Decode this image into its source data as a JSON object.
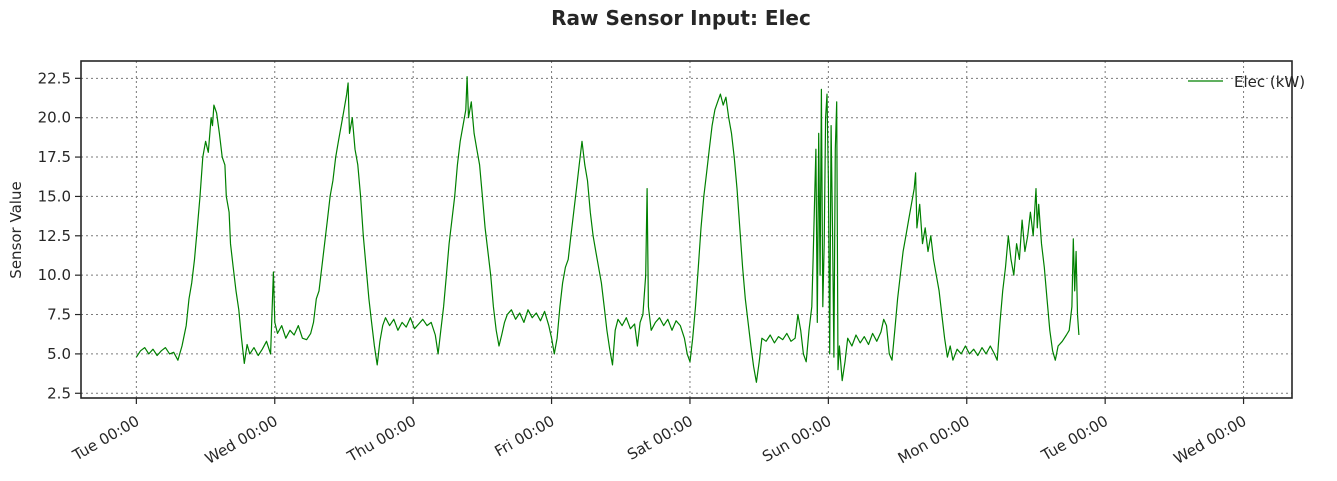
{
  "chart_data": {
    "type": "line",
    "title": "Raw Sensor Input: Elec",
    "ylabel": "Sensor Value",
    "xlabel": "",
    "ylim": [
      2.2,
      23.6
    ],
    "xlim": [
      -0.4,
      8.35
    ],
    "y_ticks": [
      2.5,
      5.0,
      7.5,
      10.0,
      12.5,
      15.0,
      17.5,
      20.0,
      22.5
    ],
    "y_tick_labels": [
      "2.5",
      "5.0",
      "7.5",
      "10.0",
      "12.5",
      "15.0",
      "17.5",
      "20.0",
      "22.5"
    ],
    "x_ticks": [
      0,
      1,
      2,
      3,
      4,
      5,
      6,
      7,
      8
    ],
    "x_tick_labels": [
      "Tue 00:00",
      "Wed 00:00",
      "Thu 00:00",
      "Fri 00:00",
      "Sat 00:00",
      "Sun 00:00",
      "Mon 00:00",
      "Tue 00:00",
      "Wed 00:00"
    ],
    "x_unit": "days",
    "grid": true,
    "legend_position": "top-right",
    "series": [
      {
        "name": "Elec (kW)",
        "color": "#008000",
        "points": [
          [
            0.0,
            4.8
          ],
          [
            0.03,
            5.2
          ],
          [
            0.06,
            5.4
          ],
          [
            0.09,
            5.0
          ],
          [
            0.12,
            5.3
          ],
          [
            0.15,
            4.9
          ],
          [
            0.18,
            5.2
          ],
          [
            0.21,
            5.4
          ],
          [
            0.24,
            5.0
          ],
          [
            0.27,
            5.1
          ],
          [
            0.3,
            4.6
          ],
          [
            0.33,
            5.5
          ],
          [
            0.36,
            6.8
          ],
          [
            0.38,
            8.5
          ],
          [
            0.4,
            9.5
          ],
          [
            0.42,
            11.0
          ],
          [
            0.44,
            13.0
          ],
          [
            0.46,
            15.0
          ],
          [
            0.48,
            17.5
          ],
          [
            0.5,
            18.5
          ],
          [
            0.52,
            17.8
          ],
          [
            0.54,
            20.0
          ],
          [
            0.55,
            19.5
          ],
          [
            0.56,
            20.8
          ],
          [
            0.58,
            20.3
          ],
          [
            0.6,
            19.0
          ],
          [
            0.62,
            17.5
          ],
          [
            0.64,
            17.0
          ],
          [
            0.65,
            15.0
          ],
          [
            0.67,
            14.0
          ],
          [
            0.68,
            12.0
          ],
          [
            0.7,
            10.5
          ],
          [
            0.72,
            9.0
          ],
          [
            0.74,
            7.8
          ],
          [
            0.76,
            6.0
          ],
          [
            0.78,
            4.4
          ],
          [
            0.8,
            5.6
          ],
          [
            0.82,
            5.0
          ],
          [
            0.85,
            5.4
          ],
          [
            0.88,
            4.9
          ],
          [
            0.91,
            5.3
          ],
          [
            0.94,
            5.8
          ],
          [
            0.97,
            5.0
          ],
          [
            0.99,
            10.2
          ],
          [
            1.0,
            7.0
          ],
          [
            1.02,
            6.3
          ],
          [
            1.05,
            6.8
          ],
          [
            1.08,
            6.0
          ],
          [
            1.11,
            6.5
          ],
          [
            1.14,
            6.2
          ],
          [
            1.17,
            6.8
          ],
          [
            1.2,
            6.0
          ],
          [
            1.23,
            5.9
          ],
          [
            1.26,
            6.3
          ],
          [
            1.28,
            7.0
          ],
          [
            1.3,
            8.5
          ],
          [
            1.32,
            9.0
          ],
          [
            1.34,
            10.5
          ],
          [
            1.36,
            12.0
          ],
          [
            1.38,
            13.5
          ],
          [
            1.4,
            15.0
          ],
          [
            1.42,
            16.0
          ],
          [
            1.44,
            17.5
          ],
          [
            1.46,
            18.5
          ],
          [
            1.48,
            19.5
          ],
          [
            1.5,
            20.5
          ],
          [
            1.52,
            21.5
          ],
          [
            1.53,
            22.2
          ],
          [
            1.54,
            19.0
          ],
          [
            1.56,
            20.0
          ],
          [
            1.58,
            18.0
          ],
          [
            1.6,
            17.0
          ],
          [
            1.62,
            15.0
          ],
          [
            1.64,
            12.5
          ],
          [
            1.66,
            10.5
          ],
          [
            1.68,
            8.5
          ],
          [
            1.7,
            7.0
          ],
          [
            1.72,
            5.5
          ],
          [
            1.74,
            4.3
          ],
          [
            1.76,
            5.8
          ],
          [
            1.78,
            6.8
          ],
          [
            1.8,
            7.3
          ],
          [
            1.83,
            6.8
          ],
          [
            1.86,
            7.2
          ],
          [
            1.89,
            6.5
          ],
          [
            1.92,
            7.0
          ],
          [
            1.95,
            6.7
          ],
          [
            1.98,
            7.3
          ],
          [
            2.01,
            6.6
          ],
          [
            2.04,
            6.9
          ],
          [
            2.07,
            7.2
          ],
          [
            2.1,
            6.8
          ],
          [
            2.13,
            7.0
          ],
          [
            2.16,
            6.2
          ],
          [
            2.18,
            5.0
          ],
          [
            2.2,
            6.5
          ],
          [
            2.22,
            8.0
          ],
          [
            2.24,
            10.0
          ],
          [
            2.26,
            12.0
          ],
          [
            2.28,
            13.5
          ],
          [
            2.3,
            15.0
          ],
          [
            2.32,
            17.0
          ],
          [
            2.34,
            18.5
          ],
          [
            2.36,
            19.5
          ],
          [
            2.38,
            20.5
          ],
          [
            2.39,
            22.6
          ],
          [
            2.4,
            20.0
          ],
          [
            2.42,
            21.0
          ],
          [
            2.44,
            19.0
          ],
          [
            2.46,
            18.0
          ],
          [
            2.48,
            17.0
          ],
          [
            2.5,
            15.0
          ],
          [
            2.52,
            13.0
          ],
          [
            2.54,
            11.5
          ],
          [
            2.56,
            10.0
          ],
          [
            2.58,
            8.0
          ],
          [
            2.6,
            6.5
          ],
          [
            2.62,
            5.5
          ],
          [
            2.64,
            6.2
          ],
          [
            2.66,
            7.0
          ],
          [
            2.68,
            7.5
          ],
          [
            2.71,
            7.8
          ],
          [
            2.74,
            7.2
          ],
          [
            2.77,
            7.6
          ],
          [
            2.8,
            7.0
          ],
          [
            2.83,
            7.8
          ],
          [
            2.86,
            7.3
          ],
          [
            2.89,
            7.6
          ],
          [
            2.92,
            7.1
          ],
          [
            2.95,
            7.7
          ],
          [
            2.98,
            6.8
          ],
          [
            3.0,
            6.0
          ],
          [
            3.02,
            5.0
          ],
          [
            3.04,
            6.0
          ],
          [
            3.06,
            8.0
          ],
          [
            3.08,
            9.5
          ],
          [
            3.1,
            10.5
          ],
          [
            3.12,
            11.0
          ],
          [
            3.14,
            12.5
          ],
          [
            3.16,
            14.0
          ],
          [
            3.18,
            15.5
          ],
          [
            3.2,
            17.0
          ],
          [
            3.22,
            18.5
          ],
          [
            3.24,
            17.0
          ],
          [
            3.26,
            16.0
          ],
          [
            3.28,
            14.0
          ],
          [
            3.3,
            12.5
          ],
          [
            3.32,
            11.5
          ],
          [
            3.34,
            10.5
          ],
          [
            3.36,
            9.5
          ],
          [
            3.38,
            8.0
          ],
          [
            3.4,
            6.5
          ],
          [
            3.42,
            5.3
          ],
          [
            3.44,
            4.3
          ],
          [
            3.46,
            6.5
          ],
          [
            3.48,
            7.2
          ],
          [
            3.51,
            6.8
          ],
          [
            3.54,
            7.3
          ],
          [
            3.57,
            6.6
          ],
          [
            3.6,
            6.9
          ],
          [
            3.62,
            5.5
          ],
          [
            3.64,
            7.0
          ],
          [
            3.66,
            7.5
          ],
          [
            3.68,
            10.0
          ],
          [
            3.69,
            15.5
          ],
          [
            3.7,
            8.0
          ],
          [
            3.72,
            6.5
          ],
          [
            3.75,
            7.0
          ],
          [
            3.78,
            7.3
          ],
          [
            3.81,
            6.8
          ],
          [
            3.84,
            7.2
          ],
          [
            3.87,
            6.5
          ],
          [
            3.9,
            7.1
          ],
          [
            3.93,
            6.8
          ],
          [
            3.96,
            6.0
          ],
          [
            3.98,
            5.0
          ],
          [
            4.0,
            4.5
          ],
          [
            4.02,
            6.0
          ],
          [
            4.04,
            8.0
          ],
          [
            4.06,
            10.5
          ],
          [
            4.08,
            13.0
          ],
          [
            4.1,
            15.0
          ],
          [
            4.12,
            16.5
          ],
          [
            4.14,
            18.0
          ],
          [
            4.16,
            19.5
          ],
          [
            4.18,
            20.5
          ],
          [
            4.2,
            21.0
          ],
          [
            4.22,
            21.5
          ],
          [
            4.24,
            20.8
          ],
          [
            4.26,
            21.3
          ],
          [
            4.28,
            20.0
          ],
          [
            4.3,
            19.0
          ],
          [
            4.32,
            17.5
          ],
          [
            4.34,
            15.5
          ],
          [
            4.36,
            13.0
          ],
          [
            4.38,
            10.5
          ],
          [
            4.4,
            8.5
          ],
          [
            4.42,
            7.0
          ],
          [
            4.44,
            5.5
          ],
          [
            4.46,
            4.2
          ],
          [
            4.48,
            3.2
          ],
          [
            4.5,
            4.5
          ],
          [
            4.52,
            6.0
          ],
          [
            4.55,
            5.8
          ],
          [
            4.58,
            6.2
          ],
          [
            4.61,
            5.7
          ],
          [
            4.64,
            6.1
          ],
          [
            4.67,
            5.9
          ],
          [
            4.7,
            6.3
          ],
          [
            4.73,
            5.8
          ],
          [
            4.76,
            6.0
          ],
          [
            4.78,
            7.5
          ],
          [
            4.8,
            6.5
          ],
          [
            4.82,
            5.0
          ],
          [
            4.84,
            4.5
          ],
          [
            4.86,
            6.5
          ],
          [
            4.88,
            8.0
          ],
          [
            4.89,
            11.0
          ],
          [
            4.9,
            14.5
          ],
          [
            4.91,
            18.0
          ],
          [
            4.92,
            7.0
          ],
          [
            4.93,
            19.0
          ],
          [
            4.94,
            10.0
          ],
          [
            4.95,
            21.8
          ],
          [
            4.96,
            8.0
          ],
          [
            4.97,
            12.0
          ],
          [
            4.98,
            20.0
          ],
          [
            4.99,
            21.5
          ],
          [
            5.0,
            16.0
          ],
          [
            5.01,
            5.0
          ],
          [
            5.02,
            19.5
          ],
          [
            5.03,
            13.0
          ],
          [
            5.04,
            4.8
          ],
          [
            5.05,
            18.0
          ],
          [
            5.06,
            21.0
          ],
          [
            5.07,
            4.0
          ],
          [
            5.08,
            5.5
          ],
          [
            5.1,
            3.3
          ],
          [
            5.12,
            4.5
          ],
          [
            5.14,
            6.0
          ],
          [
            5.17,
            5.5
          ],
          [
            5.2,
            6.2
          ],
          [
            5.23,
            5.7
          ],
          [
            5.26,
            6.1
          ],
          [
            5.29,
            5.6
          ],
          [
            5.32,
            6.3
          ],
          [
            5.35,
            5.8
          ],
          [
            5.38,
            6.4
          ],
          [
            5.4,
            7.2
          ],
          [
            5.42,
            6.8
          ],
          [
            5.44,
            5.0
          ],
          [
            5.46,
            4.6
          ],
          [
            5.48,
            6.5
          ],
          [
            5.5,
            8.5
          ],
          [
            5.52,
            10.0
          ],
          [
            5.54,
            11.5
          ],
          [
            5.56,
            12.5
          ],
          [
            5.58,
            13.5
          ],
          [
            5.6,
            14.5
          ],
          [
            5.62,
            15.5
          ],
          [
            5.63,
            16.5
          ],
          [
            5.64,
            13.0
          ],
          [
            5.66,
            14.5
          ],
          [
            5.68,
            12.0
          ],
          [
            5.7,
            13.0
          ],
          [
            5.72,
            11.5
          ],
          [
            5.74,
            12.5
          ],
          [
            5.76,
            11.0
          ],
          [
            5.78,
            10.0
          ],
          [
            5.8,
            9.0
          ],
          [
            5.82,
            7.5
          ],
          [
            5.84,
            6.0
          ],
          [
            5.86,
            4.8
          ],
          [
            5.88,
            5.5
          ],
          [
            5.9,
            4.6
          ],
          [
            5.93,
            5.3
          ],
          [
            5.96,
            5.0
          ],
          [
            5.99,
            5.5
          ],
          [
            6.02,
            5.0
          ],
          [
            6.05,
            5.3
          ],
          [
            6.08,
            4.9
          ],
          [
            6.11,
            5.4
          ],
          [
            6.14,
            5.0
          ],
          [
            6.17,
            5.5
          ],
          [
            6.2,
            5.0
          ],
          [
            6.22,
            4.6
          ],
          [
            6.24,
            7.0
          ],
          [
            6.26,
            9.0
          ],
          [
            6.28,
            10.5
          ],
          [
            6.3,
            12.5
          ],
          [
            6.32,
            11.0
          ],
          [
            6.34,
            10.0
          ],
          [
            6.36,
            12.0
          ],
          [
            6.38,
            11.0
          ],
          [
            6.4,
            13.5
          ],
          [
            6.42,
            11.5
          ],
          [
            6.44,
            12.5
          ],
          [
            6.46,
            14.0
          ],
          [
            6.48,
            12.5
          ],
          [
            6.5,
            15.5
          ],
          [
            6.51,
            13.0
          ],
          [
            6.52,
            14.5
          ],
          [
            6.54,
            12.0
          ],
          [
            6.56,
            10.5
          ],
          [
            6.58,
            8.5
          ],
          [
            6.6,
            6.5
          ],
          [
            6.62,
            5.2
          ],
          [
            6.64,
            4.6
          ],
          [
            6.66,
            5.5
          ],
          [
            6.69,
            5.8
          ],
          [
            6.72,
            6.2
          ],
          [
            6.74,
            6.5
          ],
          [
            6.76,
            8.0
          ],
          [
            6.77,
            12.3
          ],
          [
            6.78,
            9.0
          ],
          [
            6.79,
            11.5
          ],
          [
            6.8,
            7.5
          ],
          [
            6.81,
            6.2
          ]
        ]
      }
    ]
  }
}
